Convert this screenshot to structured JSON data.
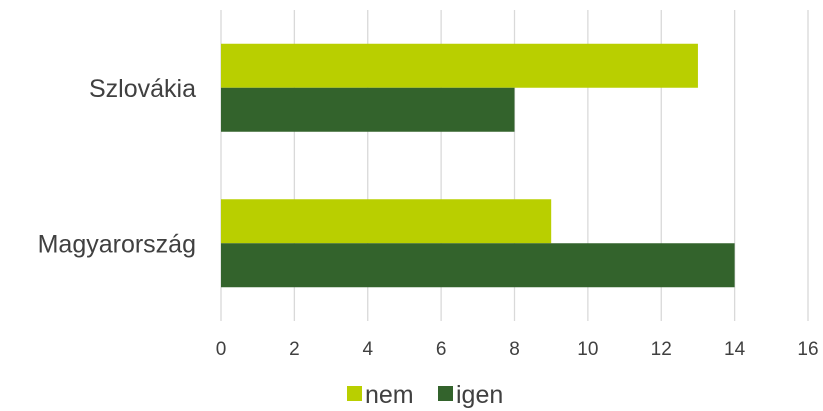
{
  "chart_data": {
    "type": "bar",
    "orientation": "horizontal",
    "title": "",
    "xlabel": "",
    "ylabel": "",
    "categories": [
      "Szlovákia",
      "Magyarország"
    ],
    "series": [
      {
        "name": "nem",
        "color": "#b9cf00",
        "values": [
          13,
          9
        ]
      },
      {
        "name": "igen",
        "color": "#33632c",
        "values": [
          8,
          14
        ]
      }
    ],
    "xlim": [
      0,
      16
    ],
    "xticks": [
      0,
      2,
      4,
      6,
      8,
      10,
      12,
      14,
      16
    ],
    "grid": true,
    "legend_position": "bottom"
  }
}
